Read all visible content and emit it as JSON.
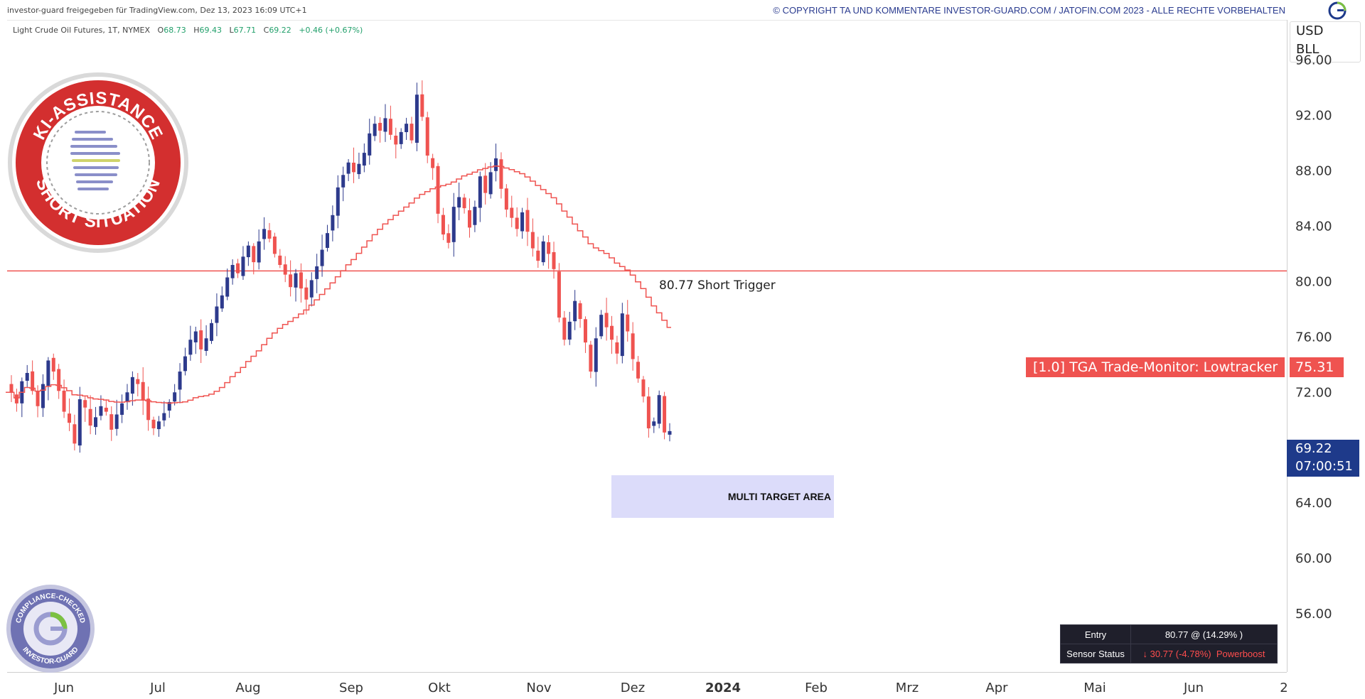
{
  "header": {
    "left_text": "investor-guard freigegeben für TradingView.com, Dez 13, 2023 16:09 UTC+1",
    "right_text": "© COPYRIGHT TA UND KOMMENTARE INVESTOR-GUARD.COM / JATOFIN.COM 2023 - ALLE RECHTE VORBEHALTEN",
    "logo_icon": "investor-guard-logo"
  },
  "symbol": {
    "name": "Light Crude Oil Futures, 1T, NYMEX",
    "o_label": "O",
    "o_value": "68.73",
    "h_label": "H",
    "h_value": "69.43",
    "l_label": "L",
    "l_value": "67.71",
    "c_label": "C",
    "c_value": "69.22",
    "change": "+0.46 (+0.67%)"
  },
  "axis": {
    "currency": "USD",
    "unit": "BLL"
  },
  "stamp": {
    "top_text": "KI-ASSISTANCE",
    "bottom_text": "SHORT SITUATION",
    "color": "#d32f2f"
  },
  "compliance_badge": {
    "top_text": "COMPLIANCE-CHECKED",
    "bottom_text": "INVESTOR-GUARD"
  },
  "annotations": {
    "short_trigger_label": "80.77  Short Trigger",
    "lowtracker_label": "[1.0] TGA Trade-Monitor: Lowtracker",
    "lowtracker_value": "75.31",
    "current_price": "69.22",
    "countdown": "07:00:51",
    "target_area_label": "MULTI TARGET AREA"
  },
  "info_table": {
    "entry_label": "Entry",
    "entry_value": "80.77 @ (14.29% )",
    "sensor_label": "Sensor Status",
    "sensor_arrow": "↓",
    "sensor_value": "30.77 (-4.78%)",
    "sensor_note": "Powerboost"
  },
  "colors": {
    "up": "#2d3a8c",
    "down": "#ef5350",
    "line": "#ef5350",
    "target_area": "#dcdcfa",
    "price_badge": "#1e3a8a"
  },
  "chart_data": {
    "type": "candlestick",
    "title": "Light Crude Oil Futures, 1T, NYMEX",
    "y_ticks": [
      "96.00",
      "92.00",
      "88.00",
      "84.00",
      "80.00",
      "76.00",
      "72.00",
      "64.00",
      "60.00",
      "56.00"
    ],
    "y_tick_values": [
      96,
      92,
      88,
      84,
      80,
      76,
      72,
      64,
      60,
      56
    ],
    "x_ticks": [
      "Jun",
      "Jul",
      "Aug",
      "Sep",
      "Okt",
      "Nov",
      "Dez",
      "2024",
      "Feb",
      "Mrz",
      "Apr",
      "Mai",
      "Jun",
      "2"
    ],
    "ylim": [
      51.8,
      98.9
    ],
    "horizontal_lines": [
      {
        "name": "Short Trigger",
        "value": 80.77
      }
    ],
    "target_area": {
      "from": 64.1,
      "to": 67.2
    },
    "closes": [
      72.0,
      71.2,
      72.8,
      73.4,
      72.1,
      71.0,
      72.6,
      74.3,
      73.5,
      72.1,
      70.6,
      69.8,
      68.3,
      71.5,
      70.9,
      69.6,
      70.2,
      71.0,
      70.6,
      69.3,
      70.4,
      71.2,
      72.0,
      73.1,
      72.6,
      71.4,
      70.0,
      69.4,
      69.9,
      70.5,
      71.3,
      72.0,
      73.5,
      74.6,
      75.8,
      76.4,
      75.1,
      75.9,
      77.0,
      78.2,
      79.0,
      80.3,
      81.2,
      80.6,
      81.8,
      82.6,
      81.4,
      82.9,
      83.8,
      83.1,
      82.0,
      81.2,
      80.5,
      79.6,
      80.6,
      79.5,
      78.7,
      80.1,
      81.1,
      82.3,
      83.5,
      84.8,
      86.8,
      87.7,
      88.6,
      87.9,
      88.5,
      89.3,
      90.7,
      91.4,
      90.9,
      91.8,
      90.6,
      89.9,
      90.8,
      91.4,
      90.2,
      93.5,
      91.9,
      89.1,
      88.2,
      84.9,
      83.4,
      82.8,
      85.4,
      86.1,
      85.3,
      83.9,
      85.4,
      87.6,
      86.4,
      87.9,
      88.9,
      86.7,
      85.2,
      84.6,
      83.8,
      85.0,
      83.6,
      82.4,
      81.5,
      82.9,
      82.0,
      80.9,
      77.4,
      75.8,
      77.1,
      78.6,
      77.3,
      75.6,
      73.5,
      75.9,
      77.6,
      76.7,
      75.8,
      74.8,
      77.7,
      76.4,
      74.4,
      73.0,
      71.7,
      69.4,
      69.9,
      71.8,
      69.1,
      69.2
    ]
  }
}
